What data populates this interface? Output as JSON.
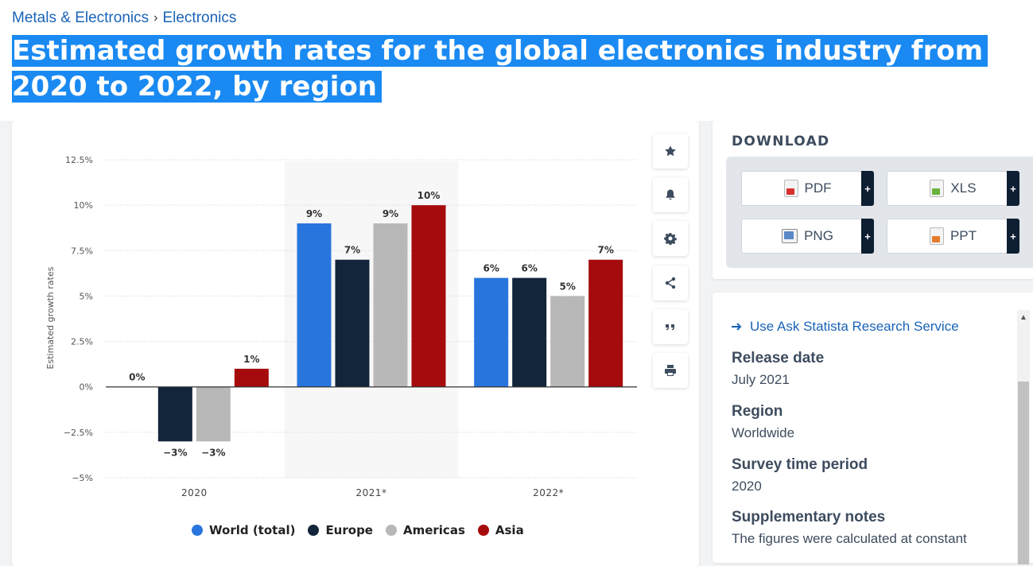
{
  "breadcrumb": {
    "items": [
      "Metals & Electronics",
      "Electronics"
    ],
    "separator": "›"
  },
  "page": {
    "title": "Estimated growth rates for the global electronics industry from 2020 to 2022, by region"
  },
  "chart_data": {
    "type": "bar",
    "categories": [
      "2020",
      "2021*",
      "2022*"
    ],
    "series": [
      {
        "name": "World (total)",
        "color": "#2876dd",
        "values": [
          0,
          9,
          6
        ]
      },
      {
        "name": "Europe",
        "color": "#13253b",
        "values": [
          -3,
          7,
          6
        ]
      },
      {
        "name": "Americas",
        "color": "#b8b8b8",
        "values": [
          -3,
          9,
          5
        ]
      },
      {
        "name": "Asia",
        "color": "#a50b0d",
        "values": [
          1,
          10,
          7
        ]
      }
    ],
    "data_labels": [
      [
        "0%",
        "−3%",
        "−3%",
        "1%"
      ],
      [
        "9%",
        "7%",
        "9%",
        "10%"
      ],
      [
        "6%",
        "6%",
        "5%",
        "7%"
      ]
    ],
    "ylabel": "Estimated growth rates",
    "ylim": [
      -5,
      12.5
    ],
    "yticks": [
      12.5,
      10,
      7.5,
      5,
      2.5,
      0,
      -2.5,
      -5
    ],
    "ytick_labels": [
      "12.5%",
      "10%",
      "7.5%",
      "5%",
      "2.5%",
      "0%",
      "−2.5%",
      "−5%"
    ],
    "grid": true,
    "highlighted_category": "2021*",
    "legend_position": "bottom"
  },
  "legend": {
    "items": [
      {
        "label": "World (total)",
        "color": "#2876dd"
      },
      {
        "label": "Europe",
        "color": "#13253b"
      },
      {
        "label": "Americas",
        "color": "#b8b8b8"
      },
      {
        "label": "Asia",
        "color": "#a50b0d"
      }
    ]
  },
  "tools": [
    "star-icon",
    "bell-icon",
    "gear-icon",
    "share-icon",
    "quote-icon",
    "print-icon"
  ],
  "download": {
    "title": "DOWNLOAD",
    "buttons": [
      {
        "label": "PDF",
        "icon": "pdf-file-icon",
        "icon_color": "#d9302d"
      },
      {
        "label": "XLS",
        "icon": "xls-file-icon",
        "icon_color": "#69b33d"
      },
      {
        "label": "PNG",
        "icon": "png-file-icon",
        "icon_color": "#5a88c9"
      },
      {
        "label": "PPT",
        "icon": "ppt-file-icon",
        "icon_color": "#e57b2c"
      }
    ],
    "plus": "+"
  },
  "info": {
    "ask_link": "Use Ask Statista Research Service",
    "release_date_label": "Release date",
    "release_date": "July 2021",
    "region_label": "Region",
    "region": "Worldwide",
    "survey_period_label": "Survey time period",
    "survey_period": "2020",
    "notes_label": "Supplementary notes",
    "notes": "The figures were calculated at constant"
  }
}
